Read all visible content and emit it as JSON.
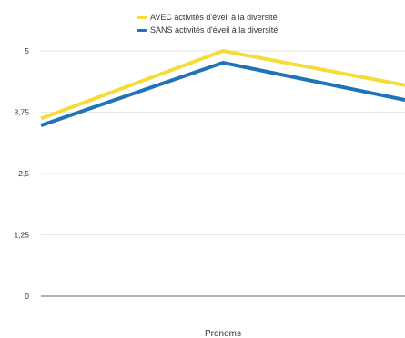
{
  "chart_data": {
    "type": "line",
    "title": "",
    "xlabel": "Pronoms",
    "ylabel": "",
    "ylim": [
      0,
      5
    ],
    "yticks": [
      "0",
      "1,25",
      "2,5",
      "3,75",
      "5"
    ],
    "ytick_values": [
      0,
      1.25,
      2.5,
      3.75,
      5
    ],
    "x": [
      1,
      2,
      3
    ],
    "grid": true,
    "legend_position": "top-center",
    "series": [
      {
        "name": "AVEC activités d'éveil à la diversité",
        "color": "#f4dc3a",
        "values": [
          3.62,
          5.0,
          4.3
        ]
      },
      {
        "name": "SANS activités d'éveil à la diversité",
        "color": "#1f73b7",
        "values": [
          3.48,
          4.76,
          4.0
        ]
      }
    ]
  }
}
